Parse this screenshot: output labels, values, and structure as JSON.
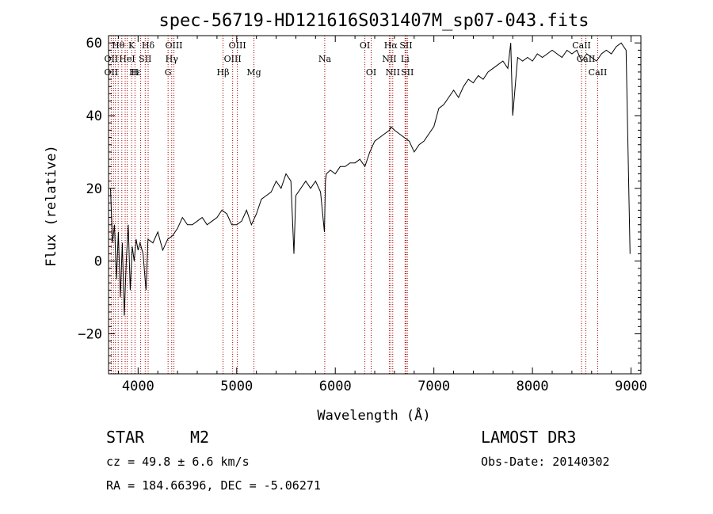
{
  "chart_data": {
    "type": "line",
    "title": "spec-56719-HD121616S031407M_sp07-043.fits",
    "xlabel": "Wavelength (Å)",
    "ylabel": "Flux (relative)",
    "xlim": [
      3700,
      9100
    ],
    "ylim": [
      -31,
      62
    ],
    "x_ticks": [
      4000,
      5000,
      6000,
      7000,
      8000,
      9000
    ],
    "y_ticks": [
      -20,
      0,
      20,
      40,
      60
    ],
    "grid": false,
    "line_color": "#000000",
    "marker_color": "#aa0000",
    "series": [
      {
        "x": [
          3720,
          3740,
          3760,
          3780,
          3800,
          3820,
          3840,
          3860,
          3880,
          3900,
          3920,
          3940,
          3960,
          3980,
          4000,
          4020,
          4050,
          4080,
          4100,
          4150,
          4200,
          4250,
          4300,
          4350,
          4400,
          4450,
          4500,
          4550,
          4600,
          4650,
          4700,
          4750,
          4800,
          4850,
          4900,
          4950,
          5000,
          5050,
          5100,
          5150,
          5200,
          5250,
          5300,
          5350,
          5400,
          5450,
          5500,
          5550,
          5580,
          5600,
          5650,
          5700,
          5750,
          5800,
          5850,
          5890,
          5900,
          5910,
          5950,
          6000,
          6050,
          6100,
          6150,
          6200,
          6250,
          6300,
          6350,
          6400,
          6450,
          6500,
          6550,
          6563,
          6600,
          6650,
          6700,
          6750,
          6800,
          6850,
          6900,
          6950,
          7000,
          7050,
          7100,
          7150,
          7200,
          7250,
          7300,
          7350,
          7400,
          7450,
          7500,
          7550,
          7600,
          7650,
          7700,
          7750,
          7780,
          7800,
          7850,
          7900,
          7950,
          8000,
          8050,
          8100,
          8150,
          8200,
          8250,
          8300,
          8350,
          8400,
          8450,
          8500,
          8550,
          8600,
          8650,
          8700,
          8750,
          8800,
          8850,
          8900,
          8950,
          8990
        ],
        "y": [
          20,
          5,
          10,
          -5,
          8,
          -10,
          5,
          -15,
          0,
          10,
          -8,
          4,
          0,
          6,
          3,
          5,
          2,
          -8,
          6,
          5,
          8,
          3,
          6,
          7,
          9,
          12,
          10,
          10,
          11,
          12,
          10,
          11,
          12,
          14,
          13,
          10,
          10,
          11,
          14,
          10,
          13,
          17,
          18,
          19,
          22,
          20,
          24,
          22,
          2,
          18,
          20,
          22,
          20,
          22,
          19,
          8,
          22,
          24,
          25,
          24,
          26,
          26,
          27,
          27,
          28,
          26,
          30,
          33,
          34,
          35,
          36,
          37,
          36,
          35,
          34,
          33,
          30,
          32,
          33,
          35,
          37,
          42,
          43,
          45,
          47,
          45,
          48,
          50,
          49,
          51,
          50,
          52,
          53,
          54,
          55,
          53,
          60,
          40,
          56,
          55,
          56,
          55,
          57,
          56,
          57,
          58,
          57,
          56,
          58,
          57,
          58,
          55,
          57,
          56,
          55,
          57,
          58,
          57,
          59,
          60,
          58,
          2
        ]
      }
    ],
    "line_labels": [
      {
        "label": "Hθ",
        "wave": 3798,
        "row": 1
      },
      {
        "label": "K",
        "wave": 3934,
        "row": 1
      },
      {
        "label": "Hδ",
        "wave": 4102,
        "row": 1
      },
      {
        "label": "OIII",
        "wave": 4363,
        "row": 1
      },
      {
        "label": "OIII",
        "wave": 5007,
        "row": 1
      },
      {
        "label": "OI",
        "wave": 6300,
        "row": 1
      },
      {
        "label": "Hα",
        "wave": 6563,
        "row": 1
      },
      {
        "label": "SII",
        "wave": 6717,
        "row": 1
      },
      {
        "label": "CaII",
        "wave": 8498,
        "row": 1
      },
      {
        "label": "OII",
        "wave": 3727,
        "row": 2
      },
      {
        "label": "HeI",
        "wave": 3889,
        "row": 2
      },
      {
        "label": "SII",
        "wave": 4072,
        "row": 2
      },
      {
        "label": "Hγ",
        "wave": 4341,
        "row": 2
      },
      {
        "label": "OIII",
        "wave": 4959,
        "row": 2
      },
      {
        "label": "Na",
        "wave": 5893,
        "row": 2
      },
      {
        "label": "NII",
        "wave": 6548,
        "row": 2
      },
      {
        "label": "Li",
        "wave": 6708,
        "row": 2
      },
      {
        "label": "CaII",
        "wave": 8542,
        "row": 2
      },
      {
        "label": "OII",
        "wave": 3727,
        "row": 3
      },
      {
        "label": "Hε",
        "wave": 3970,
        "row": 3
      },
      {
        "label": "H",
        "wave": 3968,
        "row": 3
      },
      {
        "label": "G",
        "wave": 4304,
        "row": 3
      },
      {
        "label": "Hβ",
        "wave": 4861,
        "row": 3
      },
      {
        "label": "Mg",
        "wave": 5175,
        "row": 3
      },
      {
        "label": "OI",
        "wave": 6364,
        "row": 3
      },
      {
        "label": "NII",
        "wave": 6583,
        "row": 3
      },
      {
        "label": "SII",
        "wave": 6731,
        "row": 3
      },
      {
        "label": "CaII",
        "wave": 8662,
        "row": 3
      }
    ],
    "marker_waves": [
      3727,
      3750,
      3770,
      3798,
      3835,
      3869,
      3889,
      3934,
      3968,
      4026,
      4072,
      4102,
      4304,
      4341,
      4363,
      4861,
      4959,
      5007,
      5175,
      5893,
      6300,
      6364,
      6548,
      6563,
      6583,
      6708,
      6717,
      6731,
      8498,
      8542,
      8662
    ]
  },
  "info": {
    "object_class": "STAR",
    "subclass": "M2",
    "survey": "LAMOST DR3",
    "cz_line": "cz = 49.8 ± 6.6 km/s",
    "obs_date_line": "Obs-Date: 20140302",
    "coords_line": "RA = 184.66396, DEC =  -5.06271"
  }
}
